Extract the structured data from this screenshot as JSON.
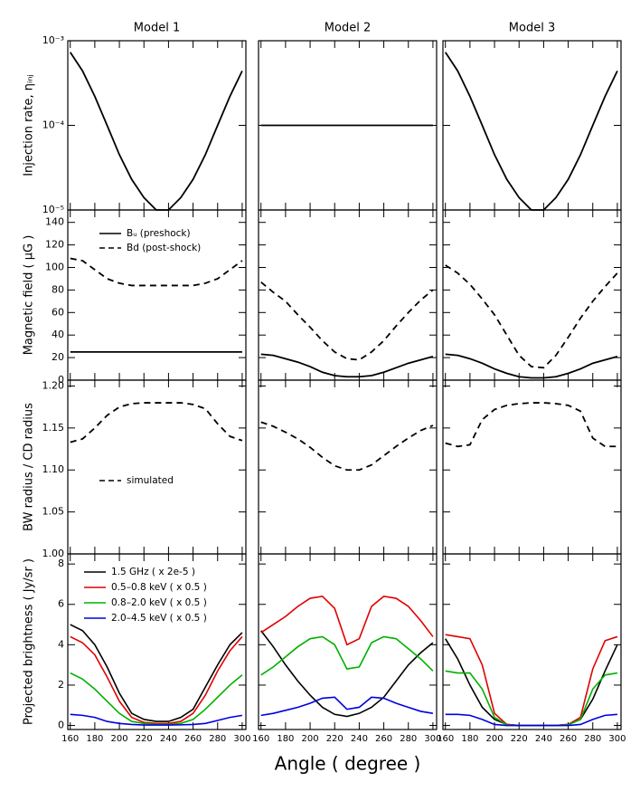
{
  "chart_data": [
    {
      "type": "line",
      "title": "Model 1",
      "ylabel": "Injection rate, ηᵢₙⱼ",
      "log": true,
      "ylim": [
        1e-05,
        0.001
      ],
      "yticks": [
        {
          "value": 1e-05,
          "label": "10⁻⁵"
        },
        {
          "value": 0.0001,
          "label": "10⁻⁴"
        },
        {
          "value": 0.001,
          "label": "10⁻³"
        }
      ],
      "x": [
        160,
        170,
        180,
        190,
        200,
        210,
        220,
        230,
        240,
        250,
        260,
        270,
        280,
        290,
        300
      ],
      "series": [
        {
          "color": "#000000",
          "values": [
            0.00073,
            0.00044,
            0.00022,
            0.0001,
            4.5e-05,
            2.3e-05,
            1.4e-05,
            1e-05,
            1e-05,
            1.4e-05,
            2.3e-05,
            4.5e-05,
            0.0001,
            0.00022,
            0.00044
          ]
        }
      ]
    },
    {
      "type": "line",
      "title": "Model 2",
      "x": [
        160,
        170,
        180,
        190,
        200,
        210,
        220,
        230,
        240,
        250,
        260,
        270,
        280,
        290,
        300
      ],
      "series": [
        {
          "color": "#000000",
          "values": [
            0.0001,
            0.0001,
            0.0001,
            0.0001,
            0.0001,
            0.0001,
            0.0001,
            0.0001,
            0.0001,
            0.0001,
            0.0001,
            0.0001,
            0.0001,
            0.0001,
            0.0001
          ]
        }
      ]
    },
    {
      "type": "line",
      "title": "Model 3",
      "x": [
        160,
        170,
        180,
        190,
        200,
        210,
        220,
        230,
        240,
        250,
        260,
        270,
        280,
        290,
        300
      ],
      "series": [
        {
          "color": "#000000",
          "values": [
            0.00073,
            0.00044,
            0.00022,
            0.0001,
            4.5e-05,
            2.3e-05,
            1.4e-05,
            1e-05,
            1e-05,
            1.4e-05,
            2.3e-05,
            4.5e-05,
            0.0001,
            0.00022,
            0.00044
          ]
        }
      ]
    },
    {
      "type": "line",
      "ylabel": "Magnetic field ( μG )",
      "ylim": [
        0,
        151
      ],
      "yticks": [
        0,
        20,
        40,
        60,
        80,
        100,
        120,
        140
      ],
      "legend": "upper left",
      "x": [
        160,
        170,
        180,
        190,
        200,
        210,
        220,
        230,
        240,
        250,
        260,
        270,
        280,
        290,
        300
      ],
      "series": [
        {
          "name": "Bᵤ (preshock)",
          "color": "#000000",
          "dashed": false,
          "values": [
            25,
            25,
            25,
            25,
            25,
            25,
            25,
            25,
            25,
            25,
            25,
            25,
            25,
            25,
            25
          ]
        },
        {
          "name": "Bd (post-shock)",
          "color": "#000000",
          "dashed": true,
          "values": [
            108,
            106,
            98,
            90,
            86,
            84,
            84,
            84,
            84,
            84,
            84,
            86,
            90,
            98,
            106
          ]
        }
      ]
    },
    {
      "type": "line",
      "x": [
        160,
        170,
        180,
        190,
        200,
        210,
        220,
        230,
        240,
        250,
        260,
        270,
        280,
        290,
        300
      ],
      "series": [
        {
          "color": "#000000",
          "dashed": false,
          "values": [
            23,
            22,
            19,
            16,
            12,
            7,
            4,
            3,
            3,
            4,
            7,
            11,
            15,
            18,
            21
          ]
        },
        {
          "color": "#000000",
          "dashed": true,
          "values": [
            87,
            78,
            70,
            58,
            47,
            35,
            25,
            19,
            18,
            25,
            35,
            48,
            60,
            71,
            80
          ]
        }
      ]
    },
    {
      "type": "line",
      "x": [
        160,
        170,
        180,
        190,
        200,
        210,
        220,
        230,
        240,
        250,
        260,
        270,
        280,
        290,
        300
      ],
      "series": [
        {
          "color": "#000000",
          "dashed": false,
          "values": [
            23,
            22,
            19,
            15,
            10,
            6,
            3,
            2,
            2,
            3,
            6,
            10,
            15,
            18,
            21
          ]
        },
        {
          "color": "#000000",
          "dashed": true,
          "values": [
            102,
            95,
            85,
            72,
            58,
            40,
            22,
            12,
            11,
            22,
            38,
            55,
            70,
            83,
            95
          ]
        }
      ]
    },
    {
      "type": "line",
      "ylabel": "BW radius / CD radius",
      "ylim": [
        1.0,
        1.207
      ],
      "legend": "center left",
      "yticks": [
        {
          "value": 1.0,
          "label": "1.00"
        },
        1.05,
        {
          "value": 1.1,
          "label": "1.10"
        },
        1.15,
        {
          "value": 1.2,
          "label": "1.20"
        }
      ],
      "x": [
        160,
        170,
        180,
        190,
        200,
        210,
        220,
        230,
        240,
        250,
        260,
        270,
        280,
        290,
        300
      ],
      "series": [
        {
          "name": "simulated",
          "color": "#000000",
          "dashed": true,
          "values": [
            1.133,
            1.137,
            1.15,
            1.165,
            1.175,
            1.179,
            1.18,
            1.18,
            1.18,
            1.18,
            1.178,
            1.173,
            1.155,
            1.14,
            1.135
          ]
        }
      ]
    },
    {
      "type": "line",
      "x": [
        160,
        170,
        180,
        190,
        200,
        210,
        220,
        230,
        240,
        250,
        260,
        270,
        280,
        290,
        300
      ],
      "series": [
        {
          "color": "#000000",
          "dashed": true,
          "values": [
            1.157,
            1.152,
            1.145,
            1.137,
            1.127,
            1.115,
            1.105,
            1.1,
            1.1,
            1.106,
            1.117,
            1.128,
            1.138,
            1.147,
            1.153
          ]
        }
      ]
    },
    {
      "type": "line",
      "x": [
        160,
        170,
        180,
        190,
        200,
        210,
        220,
        230,
        240,
        250,
        260,
        270,
        280,
        290,
        300
      ],
      "series": [
        {
          "color": "#000000",
          "dashed": true,
          "values": [
            1.132,
            1.128,
            1.13,
            1.16,
            1.172,
            1.177,
            1.179,
            1.18,
            1.18,
            1.179,
            1.177,
            1.17,
            1.138,
            1.128,
            1.128
          ]
        }
      ]
    },
    {
      "type": "line",
      "ylabel": "Projected brightness ( Jy/sr )",
      "ylim": [
        -0.2,
        8.5
      ],
      "yticks": [
        0,
        2,
        4,
        6,
        8
      ],
      "legend": "upper left",
      "xlim": [
        158,
        303
      ],
      "xticks": [
        160,
        180,
        200,
        220,
        240,
        260,
        280,
        300
      ],
      "x": [
        160,
        170,
        180,
        190,
        200,
        210,
        220,
        230,
        240,
        250,
        260,
        270,
        280,
        290,
        300
      ],
      "series": [
        {
          "name": "1.5 GHz ( x 2e-5 )",
          "color": "#000000",
          "values": [
            5.0,
            4.7,
            4.0,
            2.9,
            1.6,
            0.6,
            0.3,
            0.2,
            0.2,
            0.4,
            0.8,
            1.9,
            3.0,
            4.0,
            4.6
          ]
        },
        {
          "name": "0.5–0.8 keV ( x 0.5 )",
          "color": "#e00000",
          "values": [
            4.4,
            4.1,
            3.5,
            2.4,
            1.2,
            0.4,
            0.15,
            0.1,
            0.1,
            0.2,
            0.6,
            1.5,
            2.7,
            3.7,
            4.4
          ]
        },
        {
          "name": "0.8–2.0 keV ( x 0.5 )",
          "color": "#00b000",
          "values": [
            2.6,
            2.3,
            1.8,
            1.2,
            0.6,
            0.2,
            0.1,
            0.05,
            0.05,
            0.1,
            0.3,
            0.8,
            1.4,
            2.0,
            2.5
          ]
        },
        {
          "name": "2.0–4.5 keV ( x 0.5 )",
          "color": "#0000e0",
          "values": [
            0.55,
            0.5,
            0.4,
            0.2,
            0.1,
            0.05,
            0.02,
            0.02,
            0.02,
            0.03,
            0.05,
            0.1,
            0.25,
            0.4,
            0.5
          ]
        }
      ]
    },
    {
      "type": "line",
      "xlabel": "Angle ( degree )",
      "xlim": [
        158,
        303
      ],
      "xticks": [
        160,
        180,
        200,
        220,
        240,
        260,
        280,
        300
      ],
      "x": [
        160,
        170,
        180,
        190,
        200,
        210,
        220,
        230,
        240,
        250,
        260,
        270,
        280,
        290,
        300
      ],
      "series": [
        {
          "color": "#000000",
          "values": [
            4.7,
            3.9,
            3.0,
            2.2,
            1.5,
            0.9,
            0.55,
            0.45,
            0.6,
            0.9,
            1.4,
            2.2,
            3.0,
            3.6,
            4.1
          ]
        },
        {
          "color": "#e00000",
          "values": [
            4.6,
            5.0,
            5.4,
            5.9,
            6.3,
            6.4,
            5.8,
            4.0,
            4.3,
            5.9,
            6.4,
            6.3,
            5.9,
            5.2,
            4.4
          ]
        },
        {
          "color": "#00b000",
          "values": [
            2.5,
            2.9,
            3.4,
            3.9,
            4.3,
            4.4,
            4.0,
            2.8,
            2.9,
            4.1,
            4.4,
            4.3,
            3.8,
            3.3,
            2.7
          ]
        },
        {
          "color": "#0000e0",
          "values": [
            0.5,
            0.6,
            0.75,
            0.9,
            1.1,
            1.35,
            1.4,
            0.8,
            0.9,
            1.4,
            1.35,
            1.1,
            0.9,
            0.7,
            0.6
          ]
        }
      ]
    },
    {
      "type": "line",
      "xlim": [
        158,
        303
      ],
      "xticks": [
        160,
        180,
        200,
        220,
        240,
        260,
        280,
        300
      ],
      "x": [
        160,
        170,
        180,
        190,
        200,
        210,
        220,
        230,
        240,
        250,
        260,
        270,
        280,
        290,
        300
      ],
      "series": [
        {
          "color": "#000000",
          "values": [
            4.3,
            3.3,
            2.0,
            0.9,
            0.3,
            0.05,
            0,
            0,
            0,
            0,
            0.05,
            0.3,
            1.3,
            2.7,
            4.0
          ]
        },
        {
          "color": "#e00000",
          "values": [
            4.5,
            4.4,
            4.3,
            3.0,
            0.6,
            0.05,
            0,
            0,
            0,
            0,
            0.05,
            0.4,
            2.8,
            4.2,
            4.4
          ]
        },
        {
          "color": "#00b000",
          "values": [
            2.7,
            2.6,
            2.6,
            1.8,
            0.4,
            0.03,
            0,
            0,
            0,
            0,
            0.03,
            0.3,
            1.8,
            2.5,
            2.6
          ]
        },
        {
          "color": "#0000e0",
          "values": [
            0.55,
            0.55,
            0.5,
            0.3,
            0.05,
            0,
            0,
            0,
            0,
            0,
            0,
            0.05,
            0.3,
            0.5,
            0.55
          ]
        }
      ]
    }
  ]
}
